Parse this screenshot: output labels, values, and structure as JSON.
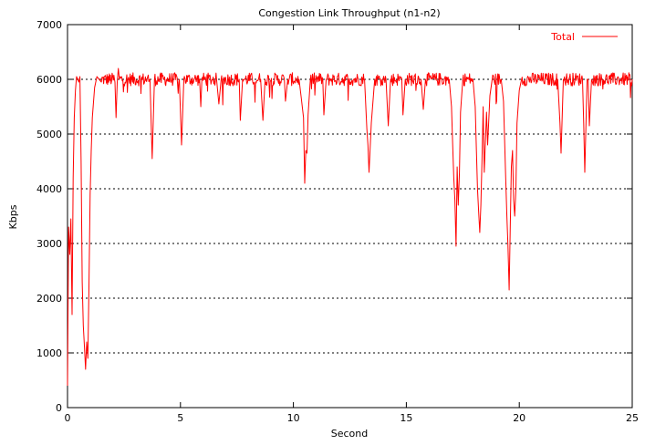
{
  "chart_data": {
    "type": "line",
    "title": "Congestion Link Throughput (n1-n2)",
    "xlabel": "Second",
    "ylabel": "Kbps",
    "xlim": [
      0,
      25
    ],
    "ylim": [
      0,
      7000
    ],
    "xticks": [
      0,
      5,
      10,
      15,
      20,
      25
    ],
    "yticks": [
      0,
      1000,
      2000,
      3000,
      4000,
      5000,
      6000,
      7000
    ],
    "grid": "horizontal dashed",
    "legend_position": "top-right",
    "series": [
      {
        "name": "Total",
        "color": "#ff0000",
        "baseline": 6000,
        "noise_amplitude": 120,
        "points": [
          [
            0.0,
            400
          ],
          [
            0.05,
            3300
          ],
          [
            0.1,
            2800
          ],
          [
            0.15,
            3450
          ],
          [
            0.2,
            1700
          ],
          [
            0.25,
            4200
          ],
          [
            0.3,
            5300
          ],
          [
            0.35,
            5800
          ],
          [
            0.4,
            6050
          ],
          [
            0.5,
            5950
          ],
          [
            0.55,
            6050
          ],
          [
            0.6,
            4500
          ],
          [
            0.65,
            2300
          ],
          [
            0.7,
            1500
          ],
          [
            0.75,
            1100
          ],
          [
            0.8,
            700
          ],
          [
            0.85,
            1200
          ],
          [
            0.9,
            900
          ],
          [
            0.95,
            2200
          ],
          [
            1.0,
            3900
          ],
          [
            1.05,
            4700
          ],
          [
            1.1,
            5300
          ],
          [
            1.2,
            5850
          ],
          [
            1.3,
            6050
          ],
          [
            1.5,
            5950
          ],
          [
            2.1,
            5950
          ],
          [
            2.15,
            5300
          ],
          [
            2.2,
            5950
          ],
          [
            2.25,
            6200
          ],
          [
            2.3,
            6000
          ],
          [
            3.65,
            6000
          ],
          [
            3.75,
            4550
          ],
          [
            3.85,
            6000
          ],
          [
            4.95,
            6000
          ],
          [
            5.05,
            4800
          ],
          [
            5.15,
            6000
          ],
          [
            5.85,
            6000
          ],
          [
            5.9,
            5500
          ],
          [
            5.95,
            6000
          ],
          [
            6.6,
            6000
          ],
          [
            6.7,
            5550
          ],
          [
            6.8,
            6000
          ],
          [
            7.6,
            6000
          ],
          [
            7.65,
            5250
          ],
          [
            7.75,
            6000
          ],
          [
            8.55,
            6000
          ],
          [
            8.65,
            5250
          ],
          [
            8.75,
            6000
          ],
          [
            9.6,
            6000
          ],
          [
            9.65,
            5600
          ],
          [
            9.75,
            6000
          ],
          [
            10.25,
            6000
          ],
          [
            10.35,
            5650
          ],
          [
            10.45,
            5300
          ],
          [
            10.5,
            4100
          ],
          [
            10.55,
            4700
          ],
          [
            10.6,
            4650
          ],
          [
            10.65,
            5350
          ],
          [
            10.75,
            6000
          ],
          [
            11.3,
            6000
          ],
          [
            11.35,
            5350
          ],
          [
            11.45,
            6000
          ],
          [
            13.15,
            6000
          ],
          [
            13.25,
            5100
          ],
          [
            13.3,
            4800
          ],
          [
            13.35,
            4300
          ],
          [
            13.45,
            5200
          ],
          [
            13.6,
            6000
          ],
          [
            14.1,
            6000
          ],
          [
            14.2,
            5150
          ],
          [
            14.3,
            6000
          ],
          [
            14.8,
            6000
          ],
          [
            14.85,
            5350
          ],
          [
            14.95,
            6000
          ],
          [
            15.65,
            6000
          ],
          [
            15.75,
            5450
          ],
          [
            15.85,
            6000
          ],
          [
            16.9,
            6000
          ],
          [
            17.0,
            5500
          ],
          [
            17.05,
            4800
          ],
          [
            17.1,
            4200
          ],
          [
            17.15,
            3800
          ],
          [
            17.2,
            2950
          ],
          [
            17.25,
            4400
          ],
          [
            17.3,
            3700
          ],
          [
            17.35,
            4300
          ],
          [
            17.4,
            5400
          ],
          [
            17.5,
            6000
          ],
          [
            17.95,
            6000
          ],
          [
            18.05,
            5500
          ],
          [
            18.1,
            4700
          ],
          [
            18.15,
            4000
          ],
          [
            18.2,
            3600
          ],
          [
            18.25,
            3200
          ],
          [
            18.3,
            3700
          ],
          [
            18.35,
            4500
          ],
          [
            18.4,
            5500
          ],
          [
            18.45,
            4300
          ],
          [
            18.55,
            5400
          ],
          [
            18.6,
            4800
          ],
          [
            18.7,
            5700
          ],
          [
            18.8,
            6000
          ],
          [
            19.2,
            6000
          ],
          [
            19.3,
            5600
          ],
          [
            19.35,
            4900
          ],
          [
            19.4,
            4200
          ],
          [
            19.45,
            3500
          ],
          [
            19.5,
            2950
          ],
          [
            19.55,
            2150
          ],
          [
            19.6,
            3300
          ],
          [
            19.65,
            4400
          ],
          [
            19.7,
            4700
          ],
          [
            19.75,
            3800
          ],
          [
            19.8,
            3500
          ],
          [
            19.85,
            4000
          ],
          [
            19.9,
            5200
          ],
          [
            20.0,
            5800
          ],
          [
            20.1,
            6000
          ],
          [
            21.7,
            6000
          ],
          [
            21.8,
            5200
          ],
          [
            21.85,
            4650
          ],
          [
            21.95,
            6000
          ],
          [
            22.8,
            6000
          ],
          [
            22.85,
            5200
          ],
          [
            22.9,
            4300
          ],
          [
            23.0,
            6000
          ],
          [
            23.05,
            6000
          ],
          [
            23.1,
            5150
          ],
          [
            23.2,
            6000
          ],
          [
            25.0,
            6000
          ]
        ]
      }
    ]
  }
}
